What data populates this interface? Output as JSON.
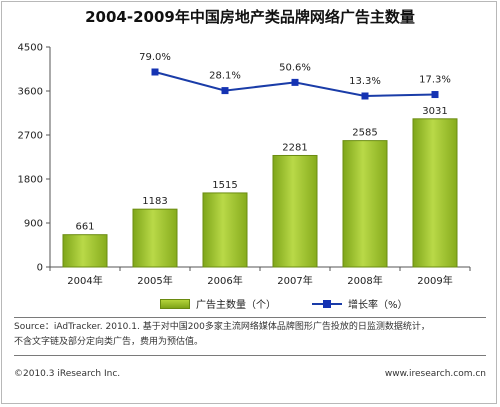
{
  "chart_data": {
    "type": "bar",
    "title": "2004-2009年中国房地产类品牌网络广告主数量",
    "categories": [
      "2004年",
      "2005年",
      "2006年",
      "2007年",
      "2008年",
      "2009年"
    ],
    "series": [
      {
        "name": "广告主数量（个）",
        "type": "bar",
        "values": [
          661,
          1183,
          1515,
          2281,
          2585,
          3031
        ],
        "color": "#99c12a"
      },
      {
        "name": "增长率（%）",
        "type": "line",
        "values": [
          null,
          79.0,
          28.1,
          50.6,
          13.3,
          17.3
        ],
        "labels": [
          "",
          "79.0%",
          "28.1%",
          "50.6%",
          "13.3%",
          "17.3%"
        ],
        "color": "#1a3ca8"
      }
    ],
    "y_ticks": [
      "0",
      "900",
      "1800",
      "2700",
      "3600",
      "4500"
    ],
    "ylim": [
      0,
      4500
    ],
    "grid": false,
    "legend": "bottom"
  },
  "source": {
    "line1": "Source：iAdTracker. 2010.1. 基于对中国200多家主流网络媒体品牌图形广告投放的日监测数据统计，",
    "line2": "不含文字链及部分定向类广告，费用为预估值。"
  },
  "footer": {
    "copyright": "©2010.3 iResearch Inc.",
    "website": "www.iresearch.com.cn"
  }
}
